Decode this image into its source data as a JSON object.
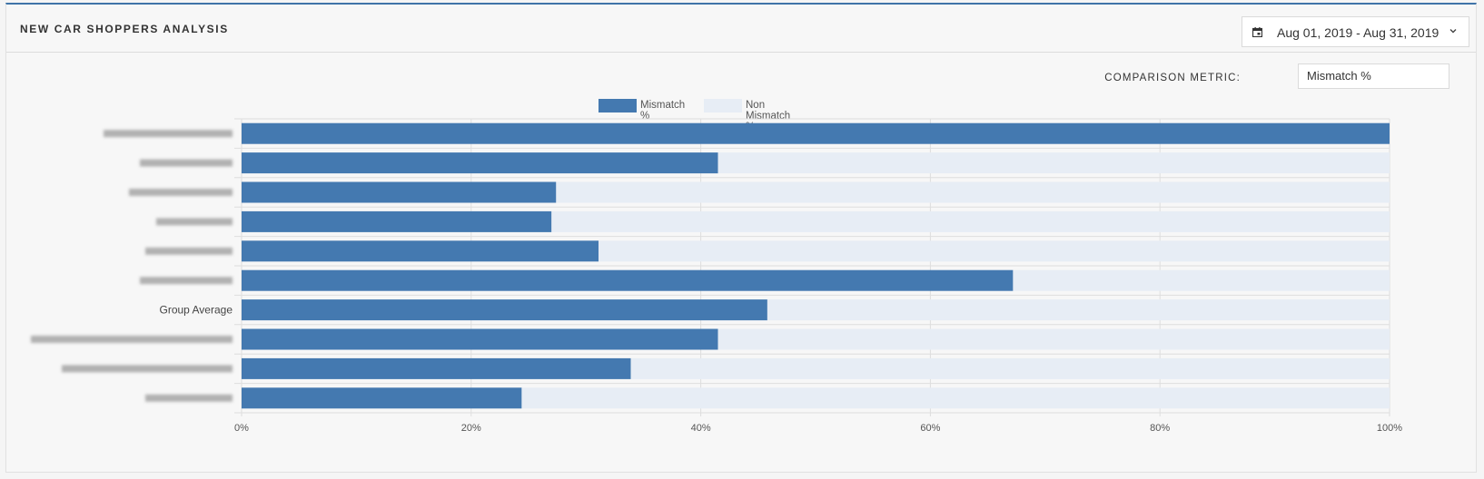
{
  "panel": {
    "title": "NEW CAR SHOPPERS ANALYSIS",
    "date_range": "Aug 01, 2019 - Aug 31, 2019",
    "comparison_metric_label": "COMPARISON METRIC:",
    "comparison_metric_value": "Mismatch %"
  },
  "icons": {
    "calendar": "calendar-icon",
    "dropdown": "chevron-down-icon"
  },
  "chart_data": {
    "type": "bar",
    "orientation": "horizontal",
    "stacked": true,
    "categories": [
      "",
      "",
      "",
      "",
      "",
      "",
      "Group Average",
      "",
      "",
      ""
    ],
    "series": [
      {
        "name": "Mismatch %",
        "color": "#4479b0",
        "values": [
          100,
          41.5,
          27.4,
          27.0,
          31.1,
          67.2,
          45.8,
          41.5,
          33.9,
          24.4
        ]
      },
      {
        "name": "Non Mismatch %",
        "color": "#e7edf5",
        "values": [
          0,
          58.5,
          72.6,
          73.0,
          68.9,
          32.8,
          54.2,
          58.5,
          66.1,
          75.6
        ]
      }
    ],
    "xlim": [
      0,
      100
    ],
    "xticks": [
      "0%",
      "20%",
      "40%",
      "60%",
      "80%",
      "100%"
    ],
    "grid": true,
    "legend_position": "top-center"
  }
}
